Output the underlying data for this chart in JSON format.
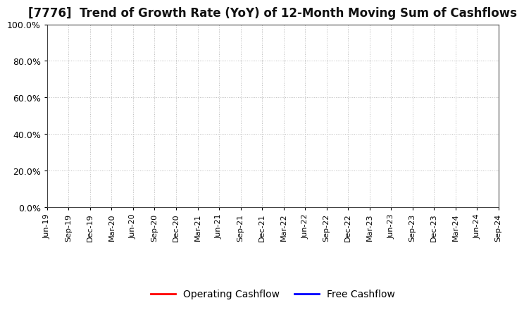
{
  "title": "[7776]  Trend of Growth Rate (YoY) of 12-Month Moving Sum of Cashflows",
  "title_fontsize": 12,
  "ylim": [
    0.0,
    1.0
  ],
  "yticks": [
    0.0,
    0.2,
    0.4,
    0.6,
    0.8,
    1.0
  ],
  "ytick_labels": [
    "0.0%",
    "20.0%",
    "40.0%",
    "60.0%",
    "80.0%",
    "100.0%"
  ],
  "xtick_labels": [
    "Jun-19",
    "Sep-19",
    "Dec-19",
    "Mar-20",
    "Jun-20",
    "Sep-20",
    "Dec-20",
    "Mar-21",
    "Jun-21",
    "Sep-21",
    "Dec-21",
    "Mar-22",
    "Jun-22",
    "Sep-22",
    "Dec-22",
    "Mar-23",
    "Jun-23",
    "Sep-23",
    "Dec-23",
    "Mar-24",
    "Jun-24",
    "Sep-24"
  ],
  "legend_entries": [
    "Operating Cashflow",
    "Free Cashflow"
  ],
  "legend_colors": [
    "#ff0000",
    "#0000ff"
  ],
  "grid_color": "#aaaaaa",
  "background_color": "#ffffff",
  "plot_background": "#ffffff",
  "line_operating_color": "#ff0000",
  "line_free_color": "#0000ff",
  "operating_cashflow": [],
  "free_cashflow": []
}
